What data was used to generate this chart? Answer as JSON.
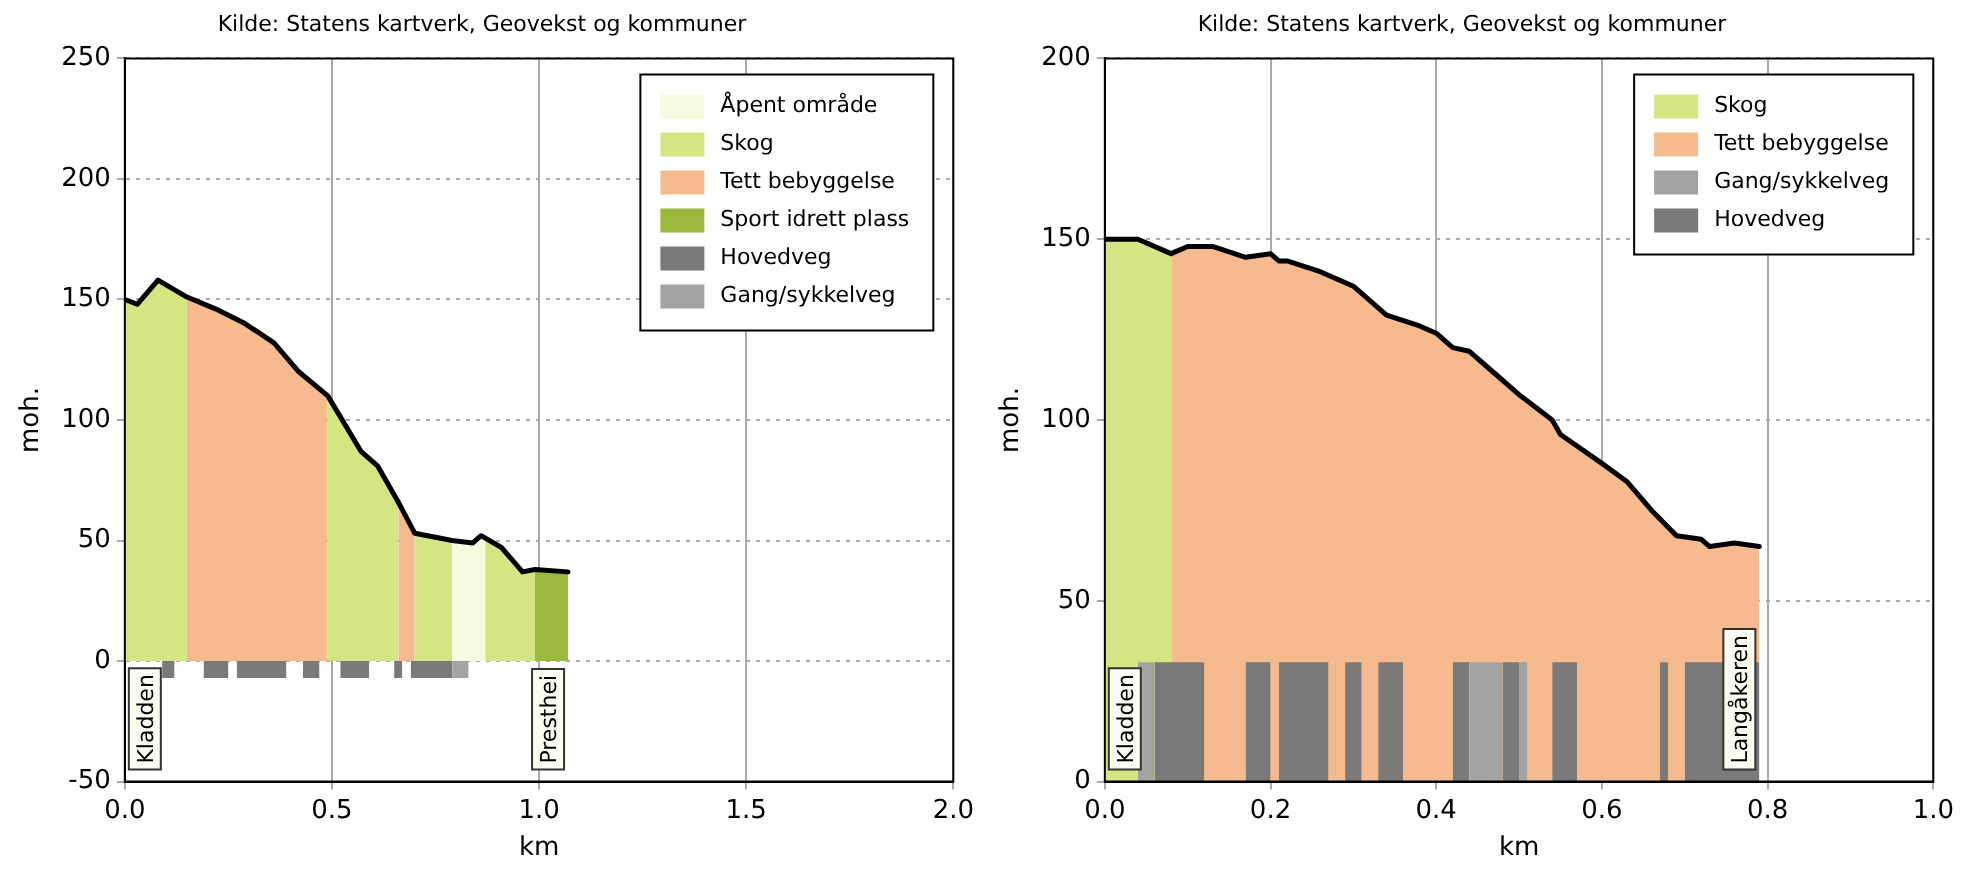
{
  "chart_data": [
    {
      "type": "area",
      "title": "Kilde: Statens kartverk, Geovekst og kommuner",
      "xlabel": "km",
      "ylabel": "moh.",
      "xlim": [
        0,
        2
      ],
      "ylim": [
        -50,
        250
      ],
      "xticks": [
        {
          "value": 0,
          "label": "0.0"
        },
        {
          "value": 0.5,
          "label": "0.5"
        },
        {
          "value": 1,
          "label": "1.0"
        },
        {
          "value": 1.5,
          "label": "1.5"
        },
        {
          "value": 2,
          "label": "2.0"
        }
      ],
      "yticks": [
        -50,
        0,
        50,
        100,
        150,
        200,
        250
      ],
      "grid": true,
      "legend": "top right",
      "annotations": [
        "Kladden",
        "Presthei"
      ],
      "series": [
        {
          "name": "Åpent område",
          "color": "#f4fbdf",
          "x": [
            0.79,
            0.84,
            0.86,
            0.87
          ],
          "values": [
            50,
            49,
            52,
            51
          ]
        },
        {
          "name": "Skog",
          "color": "#d3e681",
          "x": [
            0,
            0.03,
            0.08,
            0.15,
            0.32,
            0.49,
            0.57,
            0.61,
            0.66,
            0.68,
            0.7,
            0.79,
            0.83,
            0.87,
            0.91,
            0.96,
            0.99
          ],
          "values": [
            150,
            148,
            158,
            151,
            null,
            110,
            87,
            81,
            66,
            null,
            53,
            50,
            null,
            51,
            47,
            37,
            38
          ]
        },
        {
          "name": "Tett bebyggelse",
          "color": "#f5bb8e",
          "x": [
            0.15,
            0.22,
            0.29,
            0.36,
            0.42,
            0.49,
            0.58,
            0.66,
            0.7
          ],
          "values": [
            151,
            146,
            140,
            132,
            120,
            110,
            null,
            66,
            53
          ]
        },
        {
          "name": "Sport idrett plass",
          "color": "#9ab83c",
          "x": [
            0.99,
            1.07
          ],
          "values": [
            38,
            37
          ]
        },
        {
          "name": "Hovedveg",
          "color": "#7a7a7a",
          "x": [
            0.09,
            0.12,
            0.15,
            0.19,
            0.25,
            0.26,
            0.27,
            0.39,
            0.41,
            0.43,
            0.47,
            0.5,
            0.52,
            0.59,
            0.62,
            0.65,
            0.67,
            0.68,
            0.69,
            0.79
          ],
          "values": [
            -7,
            -7,
            null,
            -7,
            -7,
            null,
            -7,
            -7,
            null,
            -7,
            -7,
            null,
            -7,
            -7,
            null,
            -7,
            -7,
            null,
            -7,
            -7
          ]
        },
        {
          "name": "Gang/sykkelveg",
          "color": "#a3a3a3",
          "x": [
            0.79,
            0.83
          ],
          "values": [
            -7,
            -7
          ]
        },
        {
          "type": "line",
          "color": "#000000",
          "x": [
            0,
            0.03,
            0.08,
            0.15,
            0.22,
            0.29,
            0.36,
            0.42,
            0.49,
            0.57,
            0.61,
            0.66,
            0.7,
            0.79,
            0.84,
            0.86,
            0.91,
            0.96,
            0.99,
            1.07
          ],
          "values": [
            150,
            148,
            158,
            151,
            146,
            140,
            132,
            120,
            110,
            87,
            81,
            66,
            53,
            50,
            49,
            52,
            47,
            37,
            38,
            37
          ]
        }
      ]
    },
    {
      "type": "area",
      "title": "Kilde: Statens kartverk, Geovekst og kommuner",
      "xlabel": "km",
      "ylabel": "moh.",
      "xlim": [
        0,
        1
      ],
      "ylim": [
        0,
        200
      ],
      "xticks": [
        {
          "value": 0,
          "label": "0.0"
        },
        {
          "value": 0.2,
          "label": "0.2"
        },
        {
          "value": 0.4,
          "label": "0.4"
        },
        {
          "value": 0.6,
          "label": "0.6"
        },
        {
          "value": 0.8,
          "label": "0.8"
        },
        {
          "value": 1,
          "label": "1.0"
        }
      ],
      "yticks": [
        0,
        50,
        100,
        150,
        200
      ],
      "grid": true,
      "legend": "top right",
      "annotations": [
        "Kladden",
        "Langåkeren"
      ],
      "series": [
        {
          "name": "Skog",
          "color": "#d3e681",
          "x": [
            0,
            0.04,
            0.08
          ],
          "values": [
            150,
            150,
            146
          ]
        },
        {
          "name": "Tett bebyggelse",
          "color": "#f5bb8e",
          "x": [
            0.08,
            0.1,
            0.13,
            0.17,
            0.2,
            0.21,
            0.22,
            0.26,
            0.3,
            0.34,
            0.38,
            0.4,
            0.42,
            0.44,
            0.47,
            0.5,
            0.54,
            0.55,
            0.6,
            0.63,
            0.66,
            0.69,
            0.72,
            0.73,
            0.76,
            0.79
          ],
          "values": [
            146,
            148,
            148,
            145,
            146,
            144,
            144,
            141,
            137,
            129,
            126,
            124,
            120,
            119,
            113,
            107,
            100,
            96,
            88,
            83,
            75,
            68,
            67,
            65,
            66,
            65
          ]
        },
        {
          "name": "Gang/sykkelveg",
          "color": "#a3a3a3",
          "x": [
            0.04,
            0.06,
            0.2,
            0.44,
            0.48,
            0.49,
            0.5,
            0.51
          ],
          "values": [
            33,
            33,
            null,
            33,
            33,
            null,
            33,
            33
          ]
        },
        {
          "name": "Hovedveg",
          "color": "#7a7a7a",
          "x": [
            0.06,
            0.12,
            0.14,
            0.17,
            0.2,
            0.205,
            0.21,
            0.27,
            0.28,
            0.29,
            0.31,
            0.32,
            0.33,
            0.36,
            0.39,
            0.42,
            0.44,
            0.46,
            0.48,
            0.5,
            0.52,
            0.54,
            0.57,
            0.62,
            0.67,
            0.68,
            0.69,
            0.7,
            0.79
          ],
          "values": [
            33,
            33,
            null,
            33,
            33,
            null,
            33,
            33,
            null,
            33,
            33,
            null,
            33,
            33,
            null,
            33,
            33,
            null,
            33,
            33,
            null,
            33,
            33,
            null,
            33,
            33,
            null,
            33,
            33
          ]
        },
        {
          "type": "line",
          "color": "#000000",
          "x": [
            0,
            0.04,
            0.08,
            0.1,
            0.13,
            0.17,
            0.2,
            0.21,
            0.22,
            0.26,
            0.3,
            0.34,
            0.38,
            0.4,
            0.42,
            0.44,
            0.47,
            0.5,
            0.54,
            0.55,
            0.6,
            0.63,
            0.66,
            0.69,
            0.72,
            0.73,
            0.76,
            0.79
          ],
          "values": [
            150,
            150,
            146,
            148,
            148,
            145,
            146,
            144,
            144,
            141,
            137,
            129,
            126,
            124,
            120,
            119,
            113,
            107,
            100,
            96,
            88,
            83,
            75,
            68,
            67,
            65,
            66,
            65
          ]
        }
      ]
    }
  ]
}
